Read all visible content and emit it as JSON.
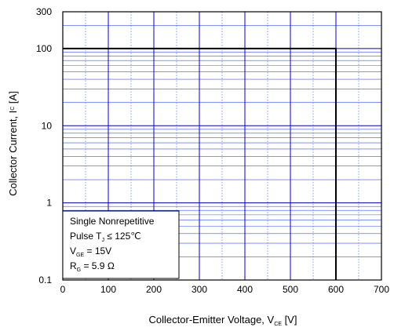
{
  "chart_data": {
    "type": "line",
    "title": "",
    "xlabel": {
      "main": "Collector-Emitter  Voltage, V",
      "sub": "CE",
      "unit": " [V]"
    },
    "ylabel": {
      "main": "Collector Current, I",
      "sub": "C",
      "unit": " [A]"
    },
    "xlim": [
      0,
      700
    ],
    "ylim": [
      0.1,
      300
    ],
    "yscale": "log",
    "grid": true,
    "x_ticks": [
      0,
      100,
      200,
      300,
      400,
      500,
      600,
      700
    ],
    "x_tick_labels": [
      "0",
      "100",
      "200",
      "300",
      "400",
      "500",
      "600",
      "700"
    ],
    "y_ticks": [
      0.1,
      1,
      10,
      100,
      300
    ],
    "y_tick_labels": [
      "0.1",
      "1",
      "10",
      "100",
      "300"
    ],
    "series": [
      {
        "x": [
          0,
          600,
          600
        ],
        "y": [
          100,
          100,
          0.1
        ]
      }
    ],
    "annotation": {
      "line1": "Single Nonrepetitive",
      "line2": {
        "pre": "Pulse T",
        "sub": "J",
        "post": " ≤  125℃"
      },
      "line3": {
        "pre": "V",
        "sub": "GE",
        "post": " =  15V"
      },
      "line4": {
        "pre": "R",
        "sub": "G",
        "post": " = 5.9 Ω"
      }
    },
    "colors": {
      "grid_major": "#0000cc",
      "grid_minor": "#3355ff",
      "curve": "#000000",
      "frame": "#000000"
    }
  }
}
